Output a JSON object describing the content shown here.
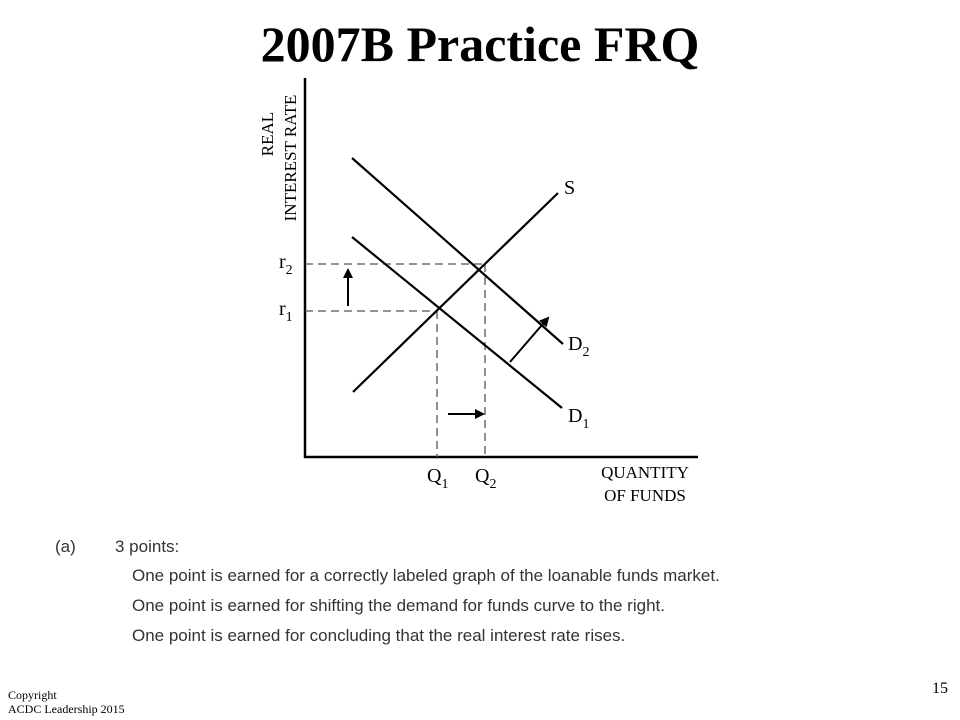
{
  "slide": {
    "title": "2007B Practice FRQ",
    "page_number": "15",
    "copyright_line1": "Copyright",
    "copyright_line2": "ACDC Leadership 2015"
  },
  "graph": {
    "y_axis_line1": "REAL",
    "y_axis_line2": "INTEREST RATE",
    "x_axis_line1": "QUANTITY",
    "x_axis_line2": "OF FUNDS",
    "supply_label": "S",
    "demand2_label_main": "D",
    "demand2_label_sub": "2",
    "demand1_label_main": "D",
    "demand1_label_sub": "1",
    "r2_main": "r",
    "r2_sub": "2",
    "r1_main": "r",
    "r1_sub": "1",
    "q1_main": "Q",
    "q1_sub": "1",
    "q2_main": "Q",
    "q2_sub": "2"
  },
  "scoring": {
    "part": "(a)",
    "points": "3  points:",
    "items": [
      "One point is earned for a correctly labeled graph of the loanable funds market.",
      "One point is earned for shifting the demand for funds curve to the right.",
      "One point is earned for concluding that the real interest rate rises."
    ]
  }
}
